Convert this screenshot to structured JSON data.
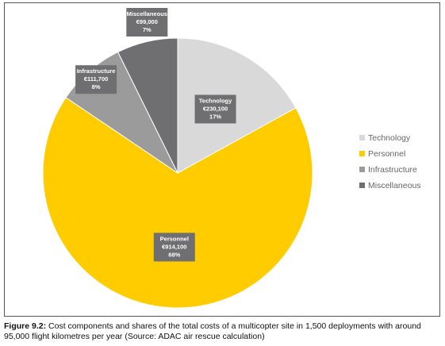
{
  "chart_data": {
    "type": "pie",
    "categories": [
      "Technology",
      "Personnel",
      "Infrastructure",
      "Miscellaneous"
    ],
    "values": [
      230100,
      914100,
      111700,
      99000
    ],
    "value_labels": [
      "€230,100",
      "€914,100",
      "€111,700",
      "€99,000"
    ],
    "percent_labels": [
      "17%",
      "68%",
      "8%",
      "7%"
    ],
    "colors": [
      "#d9d9d9",
      "#ffcc00",
      "#9b9b9b",
      "#6f6f71"
    ],
    "label_box_color": "#6f6f71",
    "legend": {
      "position": "right",
      "items": [
        "Technology",
        "Personnel",
        "Infrastructure",
        "Miscellaneous"
      ]
    }
  },
  "caption": {
    "label": "Figure 9.2:",
    "text": " Cost components and shares of the total costs of a multicopter site in 1,500 deployments with around 95,000 flight kilometres per year (Source: ADAC air rescue calculation)"
  }
}
